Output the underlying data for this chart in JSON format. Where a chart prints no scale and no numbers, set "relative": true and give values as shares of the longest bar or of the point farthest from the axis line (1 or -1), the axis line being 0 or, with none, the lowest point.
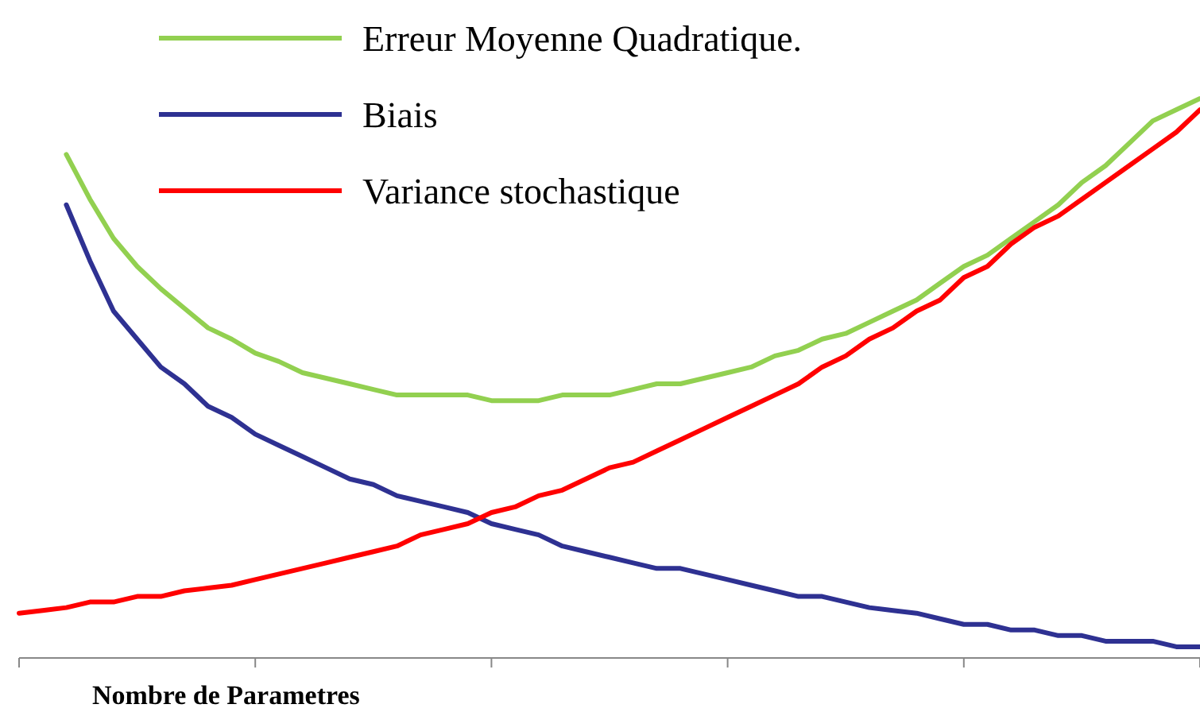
{
  "chart_data": {
    "type": "line",
    "relative": true,
    "xlabel": "Nombre de Parametres",
    "legend": "top",
    "marker": "none",
    "line_style": "solid",
    "categories": [
      null,
      null,
      null,
      null,
      null,
      null,
      null,
      null,
      null,
      null,
      null,
      null,
      null,
      null,
      null,
      null,
      null,
      null,
      null,
      null,
      null,
      null,
      null,
      null,
      null,
      null,
      null,
      null,
      null,
      null,
      null,
      null,
      null,
      null,
      null,
      null,
      null,
      null,
      null,
      null,
      null,
      null,
      null,
      null,
      null,
      null,
      null,
      null,
      null,
      null,
      null
    ],
    "series": [
      {
        "name": "Erreur Moyenne Quadratique.",
        "color": "#92d050",
        "values": [
          null,
          null,
          0.9,
          0.82,
          0.75,
          0.7,
          0.66,
          0.625,
          0.59,
          0.57,
          0.545,
          0.53,
          0.51,
          0.5,
          0.49,
          0.48,
          0.47,
          0.47,
          0.47,
          0.47,
          0.46,
          0.46,
          0.46,
          0.47,
          0.47,
          0.47,
          0.48,
          0.49,
          0.49,
          0.5,
          0.51,
          0.52,
          0.54,
          0.55,
          0.57,
          0.58,
          0.6,
          0.62,
          0.64,
          0.67,
          0.7,
          0.72,
          0.75,
          0.78,
          0.81,
          0.85,
          0.88,
          0.92,
          0.96,
          0.98,
          1.0
        ]
      },
      {
        "name": "Biais",
        "color": "#2e3192",
        "values": [
          null,
          null,
          0.81,
          0.71,
          0.62,
          0.57,
          0.52,
          0.49,
          0.45,
          0.43,
          0.4,
          0.38,
          0.36,
          0.34,
          0.32,
          0.31,
          0.29,
          0.28,
          0.27,
          0.26,
          0.24,
          0.23,
          0.22,
          0.2,
          0.19,
          0.18,
          0.17,
          0.16,
          0.16,
          0.15,
          0.14,
          0.13,
          0.12,
          0.11,
          0.11,
          0.1,
          0.09,
          0.085,
          0.08,
          0.07,
          0.06,
          0.06,
          0.05,
          0.05,
          0.04,
          0.04,
          0.03,
          0.03,
          0.03,
          0.02,
          0.02
        ]
      },
      {
        "name": "Variance stochastique",
        "color": "#ff0000",
        "values": [
          0.08,
          0.085,
          0.09,
          0.1,
          0.1,
          0.11,
          0.11,
          0.12,
          0.125,
          0.13,
          0.14,
          0.15,
          0.16,
          0.17,
          0.18,
          0.19,
          0.2,
          0.22,
          0.23,
          0.24,
          0.26,
          0.27,
          0.29,
          0.3,
          0.32,
          0.34,
          0.35,
          0.37,
          0.39,
          0.41,
          0.43,
          0.45,
          0.47,
          0.49,
          0.52,
          0.54,
          0.57,
          0.59,
          0.62,
          0.64,
          0.68,
          0.7,
          0.74,
          0.77,
          0.79,
          0.82,
          0.85,
          0.88,
          0.91,
          0.94,
          0.98
        ]
      }
    ]
  }
}
